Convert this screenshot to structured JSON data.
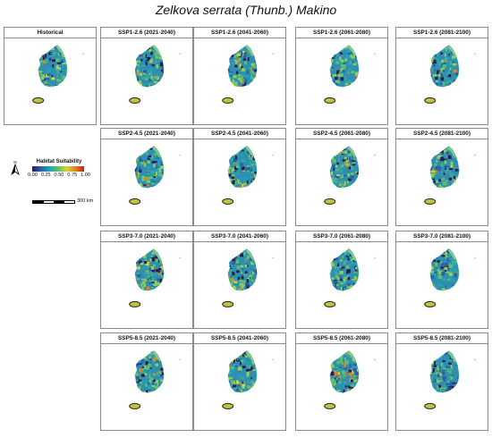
{
  "title": "Zelkova serrata (Thunb.) Makino",
  "panels": [
    {
      "label": "Historical",
      "variant": 0
    },
    {
      "label": "SSP1-2.6 (2021-2040)",
      "variant": 1
    },
    {
      "label": "SSP1-2.6 (2041-2060)",
      "variant": 2
    },
    {
      "label": "SSP1-2.6 (2061-2080)",
      "variant": 3
    },
    {
      "label": "SSP1-2.6 (2081-2100)",
      "variant": 4
    },
    {
      "label": "SSP2-4.5 (2021-2040)",
      "variant": 5
    },
    {
      "label": "SSP2-4.5 (2041-2060)",
      "variant": 6
    },
    {
      "label": "SSP2-4.5 (2061-2080)",
      "variant": 7
    },
    {
      "label": "SSP2-4.5 (2081-2100)",
      "variant": 8
    },
    {
      "label": "SSP3-7.0 (2021-2040)",
      "variant": 9
    },
    {
      "label": "SSP3-7.0 (2041-2060)",
      "variant": 10
    },
    {
      "label": "SSP3-7.0 (2061-2080)",
      "variant": 11
    },
    {
      "label": "SSP3-7.0 (2081-2100)",
      "variant": 12
    },
    {
      "label": "SSP5-8.5 (2021-2040)",
      "variant": 13
    },
    {
      "label": "SSP5-8.5 (2041-2060)",
      "variant": 14
    },
    {
      "label": "SSP5-8.5 (2061-2080)",
      "variant": 15
    },
    {
      "label": "SSP5-8.5 (2081-2100)",
      "variant": 16
    }
  ],
  "legend": {
    "title": "Habitat Suitability",
    "ticks": [
      "0.00",
      "0.25",
      "0.50",
      "0.75",
      "1.00"
    ],
    "colors": [
      "#2c1a4e",
      "#2a5fa8",
      "#1fa2b8",
      "#5cc06c",
      "#d7d13a",
      "#e0861f",
      "#c0201f"
    ],
    "north_label": "N",
    "scale_label": "300 km"
  }
}
